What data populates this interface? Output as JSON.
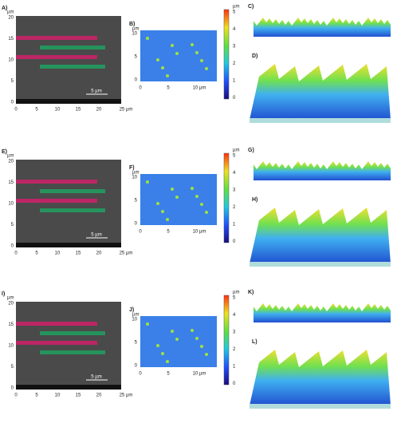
{
  "rows": [
    {
      "sem": {
        "label": "A)",
        "unit": "µm",
        "yticks": [
          "20",
          "15",
          "10",
          "5",
          "0"
        ],
        "xticks": [
          "0",
          "5",
          "10",
          "15",
          "20",
          "25 µm"
        ],
        "scale_bar": "5 µm"
      },
      "afm": {
        "label": "B)",
        "unit": "µm",
        "yticks": [
          "10",
          "5",
          "0"
        ],
        "xticks": [
          "0",
          "5",
          "10 µm"
        ]
      },
      "colorbar": {
        "unit": "µm",
        "ticks": [
          "5",
          "4",
          "3",
          "2",
          "1",
          "0"
        ]
      },
      "profile": {
        "label": "C)"
      },
      "view3d": {
        "label": "D)"
      }
    },
    {
      "sem": {
        "label": "E)",
        "unit": "µm",
        "yticks": [
          "20",
          "15",
          "10",
          "5",
          "0"
        ],
        "xticks": [
          "0",
          "5",
          "10",
          "15",
          "20",
          "25 µm"
        ],
        "scale_bar": "5 µm"
      },
      "afm": {
        "label": "F)",
        "unit": "µm",
        "yticks": [
          "10",
          "5",
          "0"
        ],
        "xticks": [
          "0",
          "5",
          "10 µm"
        ]
      },
      "colorbar": {
        "unit": "µm",
        "ticks": [
          "5",
          "4",
          "3",
          "2",
          "1",
          "0"
        ]
      },
      "profile": {
        "label": "G)"
      },
      "view3d": {
        "label": "H)"
      }
    },
    {
      "sem": {
        "label": "I)",
        "unit": "µm",
        "yticks": [
          "20",
          "15",
          "10",
          "5",
          "0"
        ],
        "xticks": [
          "0",
          "5",
          "10",
          "15",
          "20",
          "25 µm"
        ],
        "scale_bar": "5 µm"
      },
      "afm": {
        "label": "J)",
        "unit": "µm",
        "yticks": [
          "10",
          "5",
          "0"
        ],
        "xticks": [
          "0",
          "5",
          "10 µm"
        ]
      },
      "colorbar": {
        "unit": "µm",
        "ticks": [
          "5",
          "4",
          "3",
          "2",
          "1",
          "0"
        ]
      },
      "profile": {
        "label": "K)"
      },
      "view3d": {
        "label": "L)"
      }
    }
  ]
}
